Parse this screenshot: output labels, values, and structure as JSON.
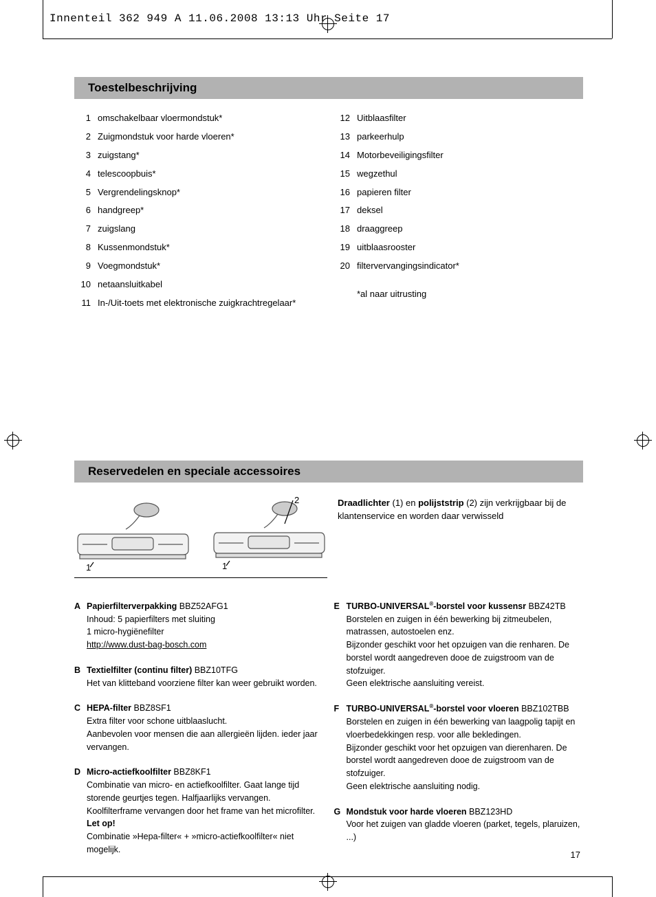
{
  "header": "Innenteil 362 949 A  11.06.2008  13:13 Uhr  Seite 17",
  "section1_title": "Toestelbeschrijving",
  "list_left": [
    {
      "n": "1",
      "t": "omschakelbaar vloermondstuk*"
    },
    {
      "n": "2",
      "t": "Zuigmondstuk voor harde vloeren*"
    },
    {
      "n": "3",
      "t": "zuigstang*"
    },
    {
      "n": "4",
      "t": "telescoopbuis*"
    },
    {
      "n": "5",
      "t": "Vergrendelingsknop*"
    },
    {
      "n": "6",
      "t": "handgreep*"
    },
    {
      "n": "7",
      "t": "zuigslang"
    },
    {
      "n": "8",
      "t": "Kussenmondstuk*"
    },
    {
      "n": "9",
      "t": "Voegmondstuk*"
    },
    {
      "n": "10",
      "t": "netaansluitkabel"
    },
    {
      "n": "11",
      "t": "In-/Uit-toets met elektronische zuigkrachtregelaar*"
    }
  ],
  "list_right": [
    {
      "n": "12",
      "t": "Uitblaasfilter"
    },
    {
      "n": "13",
      "t": "parkeerhulp"
    },
    {
      "n": "14",
      "t": "Motorbeveiligingsfilter"
    },
    {
      "n": "15",
      "t": "wegzethul"
    },
    {
      "n": "16",
      "t": "papieren filter"
    },
    {
      "n": "17",
      "t": "deksel"
    },
    {
      "n": "18",
      "t": "draaggreep"
    },
    {
      "n": "19",
      "t": "uitblaasrooster"
    },
    {
      "n": "20",
      "t": "filtervervangingsindicator*"
    }
  ],
  "equipment_note": "*al naar uitrusting",
  "section2_title": "Reservedelen en speciale accessoires",
  "draad": {
    "p1": "Draadlichter",
    "mid1": " (1) en ",
    "p2": "polijststrip",
    "mid2": " (2) zijn verkrijgbaar bij de klantenservice en worden daar verwisseld"
  },
  "illus_labels": {
    "one": "1",
    "two": "2"
  },
  "acc_left": [
    {
      "letter": "A",
      "title": "Papierfilterverpakking",
      "code": "  BBZ52AFG1",
      "lines": [
        "Inhoud: 5 papierfilters met sluiting",
        "1 micro-hygiënefilter"
      ],
      "link": "http://www.dust-bag-bosch.com"
    },
    {
      "letter": "B",
      "title": "Textielfilter (continu filter)",
      "code": " BBZ10TFG",
      "lines": [
        "Het van klitteband voorziene filter kan weer gebruikt worden."
      ]
    },
    {
      "letter": "C",
      "title": "HEPA-filter",
      "code": " BBZ8SF1",
      "lines": [
        "Extra filter voor schone uitblaaslucht.",
        "Aanbevolen voor mensen die aan allergieën lijden. ieder jaar vervangen."
      ]
    },
    {
      "letter": "D",
      "title": "Micro-actiefkoolfilter",
      "code": " BBZ8KF1",
      "lines": [
        "Combinatie van micro- en actiefkoolfilter. Gaat lange tijd storende geurtjes tegen. Halfjaarlijks vervangen.",
        "Koolfilterframe vervangen door het frame van het microfilter."
      ],
      "letop": "Let op!",
      "lines2": [
        "Combinatie »Hepa-filter« + »micro-actiefkoolfilter« niet mogelijk."
      ]
    }
  ],
  "acc_right": [
    {
      "letter": "E",
      "title_pre": "TURBO-UNIVERSAL",
      "title_post": "-borstel voor kussensr",
      "code": " BBZ42TB",
      "lines": [
        "Borstelen en zuigen in één bewerking bij zitmeubelen, matrassen, autostoelen enz.",
        "Bijzonder geschikt voor het opzuigen van die renharen. De borstel wordt aangedreven dooe de zuigstroom van de stofzuiger.",
        "Geen elektrische aansluiting vereist."
      ]
    },
    {
      "letter": "F",
      "title_pre": "TURBO-UNIVERSAL",
      "title_post": "-borstel voor vloeren",
      "code": " BBZ102TBB",
      "lines": [
        "Borstelen en zuigen in één bewerking van laagpolig tapijt en vloerbedekkingen resp. voor alle bekledingen.",
        "Bijzonder geschikt voor het opzuigen van dierenharen. De borstel wordt aangedreven dooe de zuigstroom van de stofzuiger.",
        "Geen elektrische aansluiting nodig."
      ]
    },
    {
      "letter": "G",
      "title": "Mondstuk voor harde vloeren",
      "code": " BBZ123HD",
      "lines": [
        "Voor het zuigen van gladde vloeren (parket, tegels, plaruizen, ...)"
      ]
    }
  ],
  "pagenum": "17"
}
